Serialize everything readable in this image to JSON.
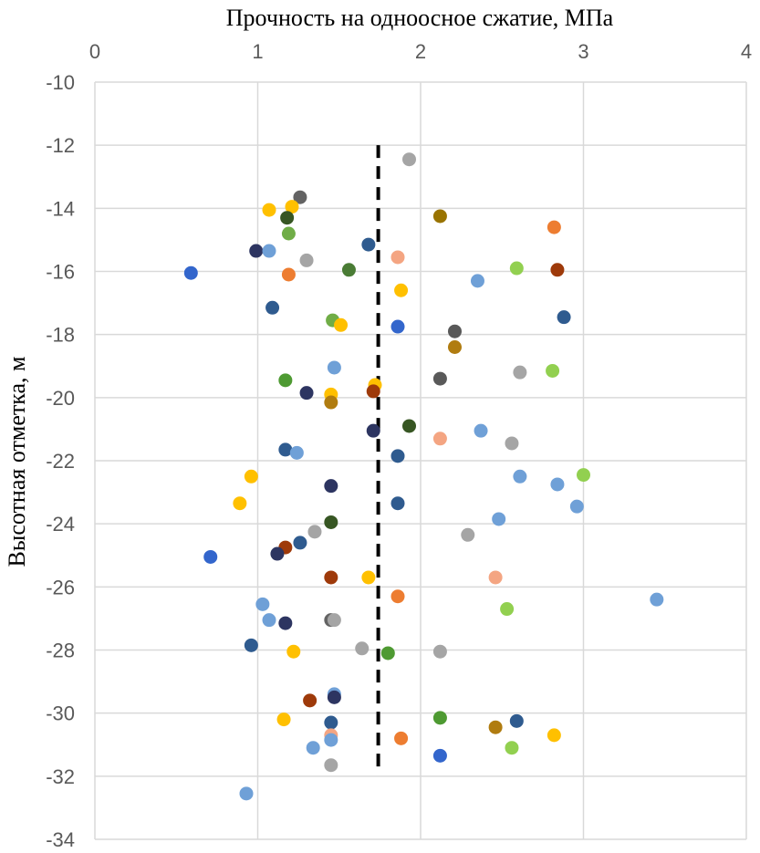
{
  "chart_data": {
    "type": "scatter",
    "title": "",
    "xlabel": "Прочность на одноосное сжатие, МПа",
    "ylabel": "Высотная отметка, м",
    "xlim": [
      0,
      4
    ],
    "ylim": [
      -34,
      -10
    ],
    "x_ticks": [
      0,
      1,
      2,
      3,
      4
    ],
    "y_ticks": [
      -10,
      -12,
      -14,
      -16,
      -18,
      -20,
      -22,
      -24,
      -26,
      -28,
      -30,
      -32,
      -34
    ],
    "x_tick_labels": [
      "0",
      "1",
      "2",
      "3",
      "4"
    ],
    "y_tick_labels": [
      "-10",
      "-12",
      "-14",
      "-16",
      "-18",
      "-20",
      "-22",
      "-24",
      "-26",
      "-28",
      "-30",
      "-32",
      "-34"
    ],
    "grid": true,
    "legend": "none",
    "reference_line": {
      "style": "dashed",
      "color": "#000000",
      "x": 1.74,
      "y_from": -12.0,
      "y_to": -31.9
    },
    "points": [
      {
        "x": 1.93,
        "y": -12.45,
        "color": "#a5a5a5"
      },
      {
        "x": 1.26,
        "y": -13.65,
        "color": "#636363"
      },
      {
        "x": 1.07,
        "y": -14.05,
        "color": "#ffc000"
      },
      {
        "x": 1.21,
        "y": -13.95,
        "color": "#ffc000"
      },
      {
        "x": 1.18,
        "y": -14.3,
        "color": "#375623"
      },
      {
        "x": 2.12,
        "y": -14.25,
        "color": "#997300"
      },
      {
        "x": 2.82,
        "y": -14.6,
        "color": "#ed7d31"
      },
      {
        "x": 1.19,
        "y": -14.8,
        "color": "#70ad47"
      },
      {
        "x": 0.99,
        "y": -15.35,
        "color": "#2d3561"
      },
      {
        "x": 1.07,
        "y": -15.35,
        "color": "#6fa0d7"
      },
      {
        "x": 1.68,
        "y": -15.15,
        "color": "#2f5b8f"
      },
      {
        "x": 1.86,
        "y": -15.55,
        "color": "#f4a582"
      },
      {
        "x": 1.3,
        "y": -15.65,
        "color": "#a5a5a5"
      },
      {
        "x": 2.59,
        "y": -15.9,
        "color": "#92d050"
      },
      {
        "x": 2.84,
        "y": -15.95,
        "color": "#9e3a0a"
      },
      {
        "x": 1.56,
        "y": -15.95,
        "color": "#4a7c35"
      },
      {
        "x": 0.59,
        "y": -16.05,
        "color": "#3366cc"
      },
      {
        "x": 1.19,
        "y": -16.1,
        "color": "#ed7d31"
      },
      {
        "x": 2.35,
        "y": -16.3,
        "color": "#6fa0d7"
      },
      {
        "x": 1.88,
        "y": -16.6,
        "color": "#ffc000"
      },
      {
        "x": 1.09,
        "y": -17.15,
        "color": "#2f5b8f"
      },
      {
        "x": 2.88,
        "y": -17.45,
        "color": "#2f5b8f"
      },
      {
        "x": 1.46,
        "y": -17.55,
        "color": "#70ad47"
      },
      {
        "x": 1.51,
        "y": -17.7,
        "color": "#ffc000"
      },
      {
        "x": 1.86,
        "y": -17.75,
        "color": "#3366cc"
      },
      {
        "x": 2.21,
        "y": -17.9,
        "color": "#595959"
      },
      {
        "x": 2.21,
        "y": -18.4,
        "color": "#b07c10"
      },
      {
        "x": 1.47,
        "y": -19.05,
        "color": "#6fa0d7"
      },
      {
        "x": 2.61,
        "y": -19.2,
        "color": "#a5a5a5"
      },
      {
        "x": 2.81,
        "y": -19.15,
        "color": "#92d050"
      },
      {
        "x": 2.12,
        "y": -19.4,
        "color": "#595959"
      },
      {
        "x": 1.17,
        "y": -19.45,
        "color": "#4e9a32"
      },
      {
        "x": 1.72,
        "y": -19.6,
        "color": "#ffc000"
      },
      {
        "x": 1.71,
        "y": -19.8,
        "color": "#9e3a0a"
      },
      {
        "x": 1.3,
        "y": -19.85,
        "color": "#2d3561"
      },
      {
        "x": 1.45,
        "y": -19.9,
        "color": "#ffc000"
      },
      {
        "x": 1.45,
        "y": -20.15,
        "color": "#b07c10"
      },
      {
        "x": 1.93,
        "y": -20.9,
        "color": "#375623"
      },
      {
        "x": 1.71,
        "y": -21.05,
        "color": "#2d3561"
      },
      {
        "x": 2.37,
        "y": -21.05,
        "color": "#6fa0d7"
      },
      {
        "x": 2.12,
        "y": -21.3,
        "color": "#f4a582"
      },
      {
        "x": 2.56,
        "y": -21.45,
        "color": "#a5a5a5"
      },
      {
        "x": 1.17,
        "y": -21.65,
        "color": "#2f5b8f"
      },
      {
        "x": 1.24,
        "y": -21.75,
        "color": "#6fa0d7"
      },
      {
        "x": 1.86,
        "y": -21.85,
        "color": "#2f5b8f"
      },
      {
        "x": 0.96,
        "y": -22.5,
        "color": "#ffc000"
      },
      {
        "x": 2.61,
        "y": -22.5,
        "color": "#6fa0d7"
      },
      {
        "x": 3.0,
        "y": -22.45,
        "color": "#92d050"
      },
      {
        "x": 2.84,
        "y": -22.75,
        "color": "#6fa0d7"
      },
      {
        "x": 1.45,
        "y": -22.8,
        "color": "#2d3561"
      },
      {
        "x": 0.89,
        "y": -23.35,
        "color": "#ffc000"
      },
      {
        "x": 1.86,
        "y": -23.35,
        "color": "#2f5b8f"
      },
      {
        "x": 2.96,
        "y": -23.45,
        "color": "#6fa0d7"
      },
      {
        "x": 2.48,
        "y": -23.85,
        "color": "#6fa0d7"
      },
      {
        "x": 1.45,
        "y": -23.95,
        "color": "#375623"
      },
      {
        "x": 1.35,
        "y": -24.25,
        "color": "#a5a5a5"
      },
      {
        "x": 2.29,
        "y": -24.35,
        "color": "#a5a5a5"
      },
      {
        "x": 1.26,
        "y": -24.6,
        "color": "#2f5b8f"
      },
      {
        "x": 1.17,
        "y": -24.75,
        "color": "#9e3a0a"
      },
      {
        "x": 1.12,
        "y": -24.95,
        "color": "#2d3561"
      },
      {
        "x": 0.71,
        "y": -25.05,
        "color": "#3366cc"
      },
      {
        "x": 1.45,
        "y": -25.7,
        "color": "#9e3a0a"
      },
      {
        "x": 1.68,
        "y": -25.7,
        "color": "#ffc000"
      },
      {
        "x": 2.46,
        "y": -25.7,
        "color": "#f4a582"
      },
      {
        "x": 1.86,
        "y": -26.3,
        "color": "#ed7d31"
      },
      {
        "x": 3.45,
        "y": -26.4,
        "color": "#6fa0d7"
      },
      {
        "x": 1.03,
        "y": -26.55,
        "color": "#6fa0d7"
      },
      {
        "x": 2.53,
        "y": -26.7,
        "color": "#92d050"
      },
      {
        "x": 1.45,
        "y": -27.05,
        "color": "#636363"
      },
      {
        "x": 1.47,
        "y": -27.05,
        "color": "#a5a5a5"
      },
      {
        "x": 1.07,
        "y": -27.05,
        "color": "#6fa0d7"
      },
      {
        "x": 1.17,
        "y": -27.15,
        "color": "#2d3561"
      },
      {
        "x": 0.96,
        "y": -27.85,
        "color": "#2f5b8f"
      },
      {
        "x": 1.64,
        "y": -27.95,
        "color": "#a5a5a5"
      },
      {
        "x": 2.12,
        "y": -28.05,
        "color": "#a5a5a5"
      },
      {
        "x": 1.22,
        "y": -28.05,
        "color": "#ffc000"
      },
      {
        "x": 1.8,
        "y": -28.1,
        "color": "#4e9a32"
      },
      {
        "x": 1.47,
        "y": -29.4,
        "color": "#6fa0d7"
      },
      {
        "x": 1.47,
        "y": -29.5,
        "color": "#2d3561"
      },
      {
        "x": 1.32,
        "y": -29.6,
        "color": "#9e3a0a"
      },
      {
        "x": 2.12,
        "y": -30.15,
        "color": "#4e9a32"
      },
      {
        "x": 1.16,
        "y": -30.2,
        "color": "#ffc000"
      },
      {
        "x": 2.59,
        "y": -30.25,
        "color": "#2f5b8f"
      },
      {
        "x": 1.45,
        "y": -30.3,
        "color": "#2f5b8f"
      },
      {
        "x": 2.46,
        "y": -30.45,
        "color": "#b07c10"
      },
      {
        "x": 2.82,
        "y": -30.7,
        "color": "#ffc000"
      },
      {
        "x": 1.45,
        "y": -30.7,
        "color": "#f4a582"
      },
      {
        "x": 1.88,
        "y": -30.8,
        "color": "#ed7d31"
      },
      {
        "x": 1.45,
        "y": -30.85,
        "color": "#6fa0d7"
      },
      {
        "x": 1.34,
        "y": -31.1,
        "color": "#6fa0d7"
      },
      {
        "x": 2.56,
        "y": -31.1,
        "color": "#92d050"
      },
      {
        "x": 2.12,
        "y": -31.35,
        "color": "#3366cc"
      },
      {
        "x": 1.45,
        "y": -31.65,
        "color": "#a5a5a5"
      },
      {
        "x": 0.93,
        "y": -32.55,
        "color": "#6fa0d7"
      }
    ]
  }
}
